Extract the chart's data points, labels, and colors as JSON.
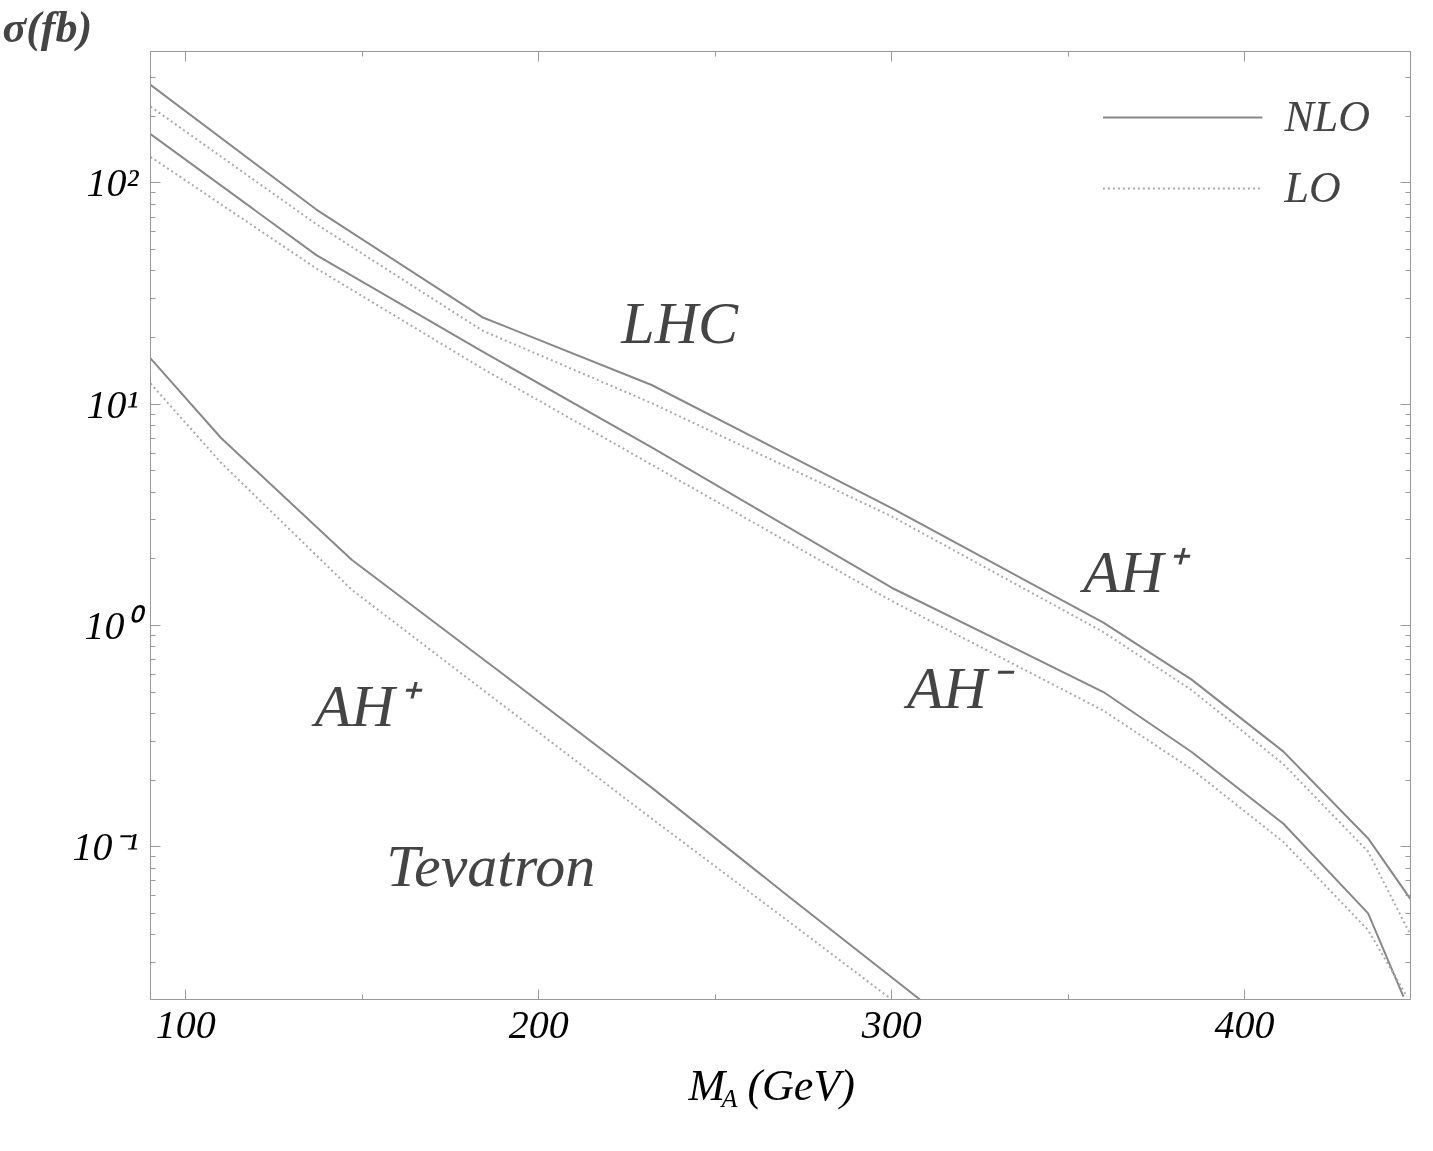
{
  "chart_data": {
    "type": "line",
    "xlabel": "M$_{A}$ (GeV)",
    "ylabel": "σ(fb)",
    "xlim": [
      90,
      447
    ],
    "xticks": [
      100,
      200,
      300,
      400
    ],
    "ylim": [
      0.0204,
      392
    ],
    "log": true,
    "yticks": [
      {
        "value": 0.1,
        "label": "10⁻¹"
      },
      {
        "value": 1,
        "label": "10⁰"
      },
      {
        "value": 10,
        "label": "10¹"
      },
      {
        "value": 100,
        "label": "10²"
      }
    ],
    "grid": false,
    "legend": "top right",
    "marker": "none",
    "series": [
      {
        "name": "NLO",
        "color": "#888888",
        "line_style": "solid",
        "x": [
          90,
          137,
          184,
          232,
          300,
          360,
          385,
          411,
          435,
          447
        ],
        "values": [
          277,
          75.7,
          24.7,
          12.2,
          3.39,
          1.03,
          0.569,
          0.269,
          0.109,
          0.058
        ]
      },
      {
        "name": "LO",
        "color": "#aaaaaa",
        "line_style": "dotted",
        "x": [
          90,
          137,
          184,
          232,
          300,
          360,
          385,
          411,
          435,
          447
        ],
        "values": [
          221,
          65,
          21.5,
          10.1,
          3.11,
          0.933,
          0.51,
          0.236,
          0.095,
          0.04
        ]
      },
      {
        "color": "#888888",
        "line_style": "solid",
        "x": [
          90,
          137,
          184,
          232,
          300,
          360,
          385,
          411,
          435,
          445
        ],
        "values": [
          166,
          47.1,
          17.3,
          6.38,
          1.48,
          0.5,
          0.268,
          0.127,
          0.05,
          0.021
        ]
      },
      {
        "color": "#aaaaaa",
        "line_style": "dotted",
        "x": [
          90,
          137,
          184,
          232,
          300,
          360,
          385,
          411,
          435,
          446
        ],
        "values": [
          131,
          41,
          14.5,
          5.32,
          1.29,
          0.412,
          0.224,
          0.105,
          0.042,
          0.021
        ]
      },
      {
        "color": "#888888",
        "line_style": "solid",
        "x": [
          90,
          110,
          147,
          190,
          232,
          270,
          308
        ],
        "values": [
          16.1,
          7.03,
          1.98,
          0.6,
          0.185,
          0.061,
          0.0204
        ]
      },
      {
        "color": "#aaaaaa",
        "line_style": "dotted",
        "x": [
          90,
          110,
          147,
          190,
          232,
          270,
          300
        ],
        "values": [
          12.4,
          5.43,
          1.45,
          0.434,
          0.134,
          0.047,
          0.0204
        ]
      }
    ],
    "annotations": [
      "LHC",
      "AH⁺",
      "AH⁻",
      "AH⁺",
      "Tevatron"
    ]
  }
}
